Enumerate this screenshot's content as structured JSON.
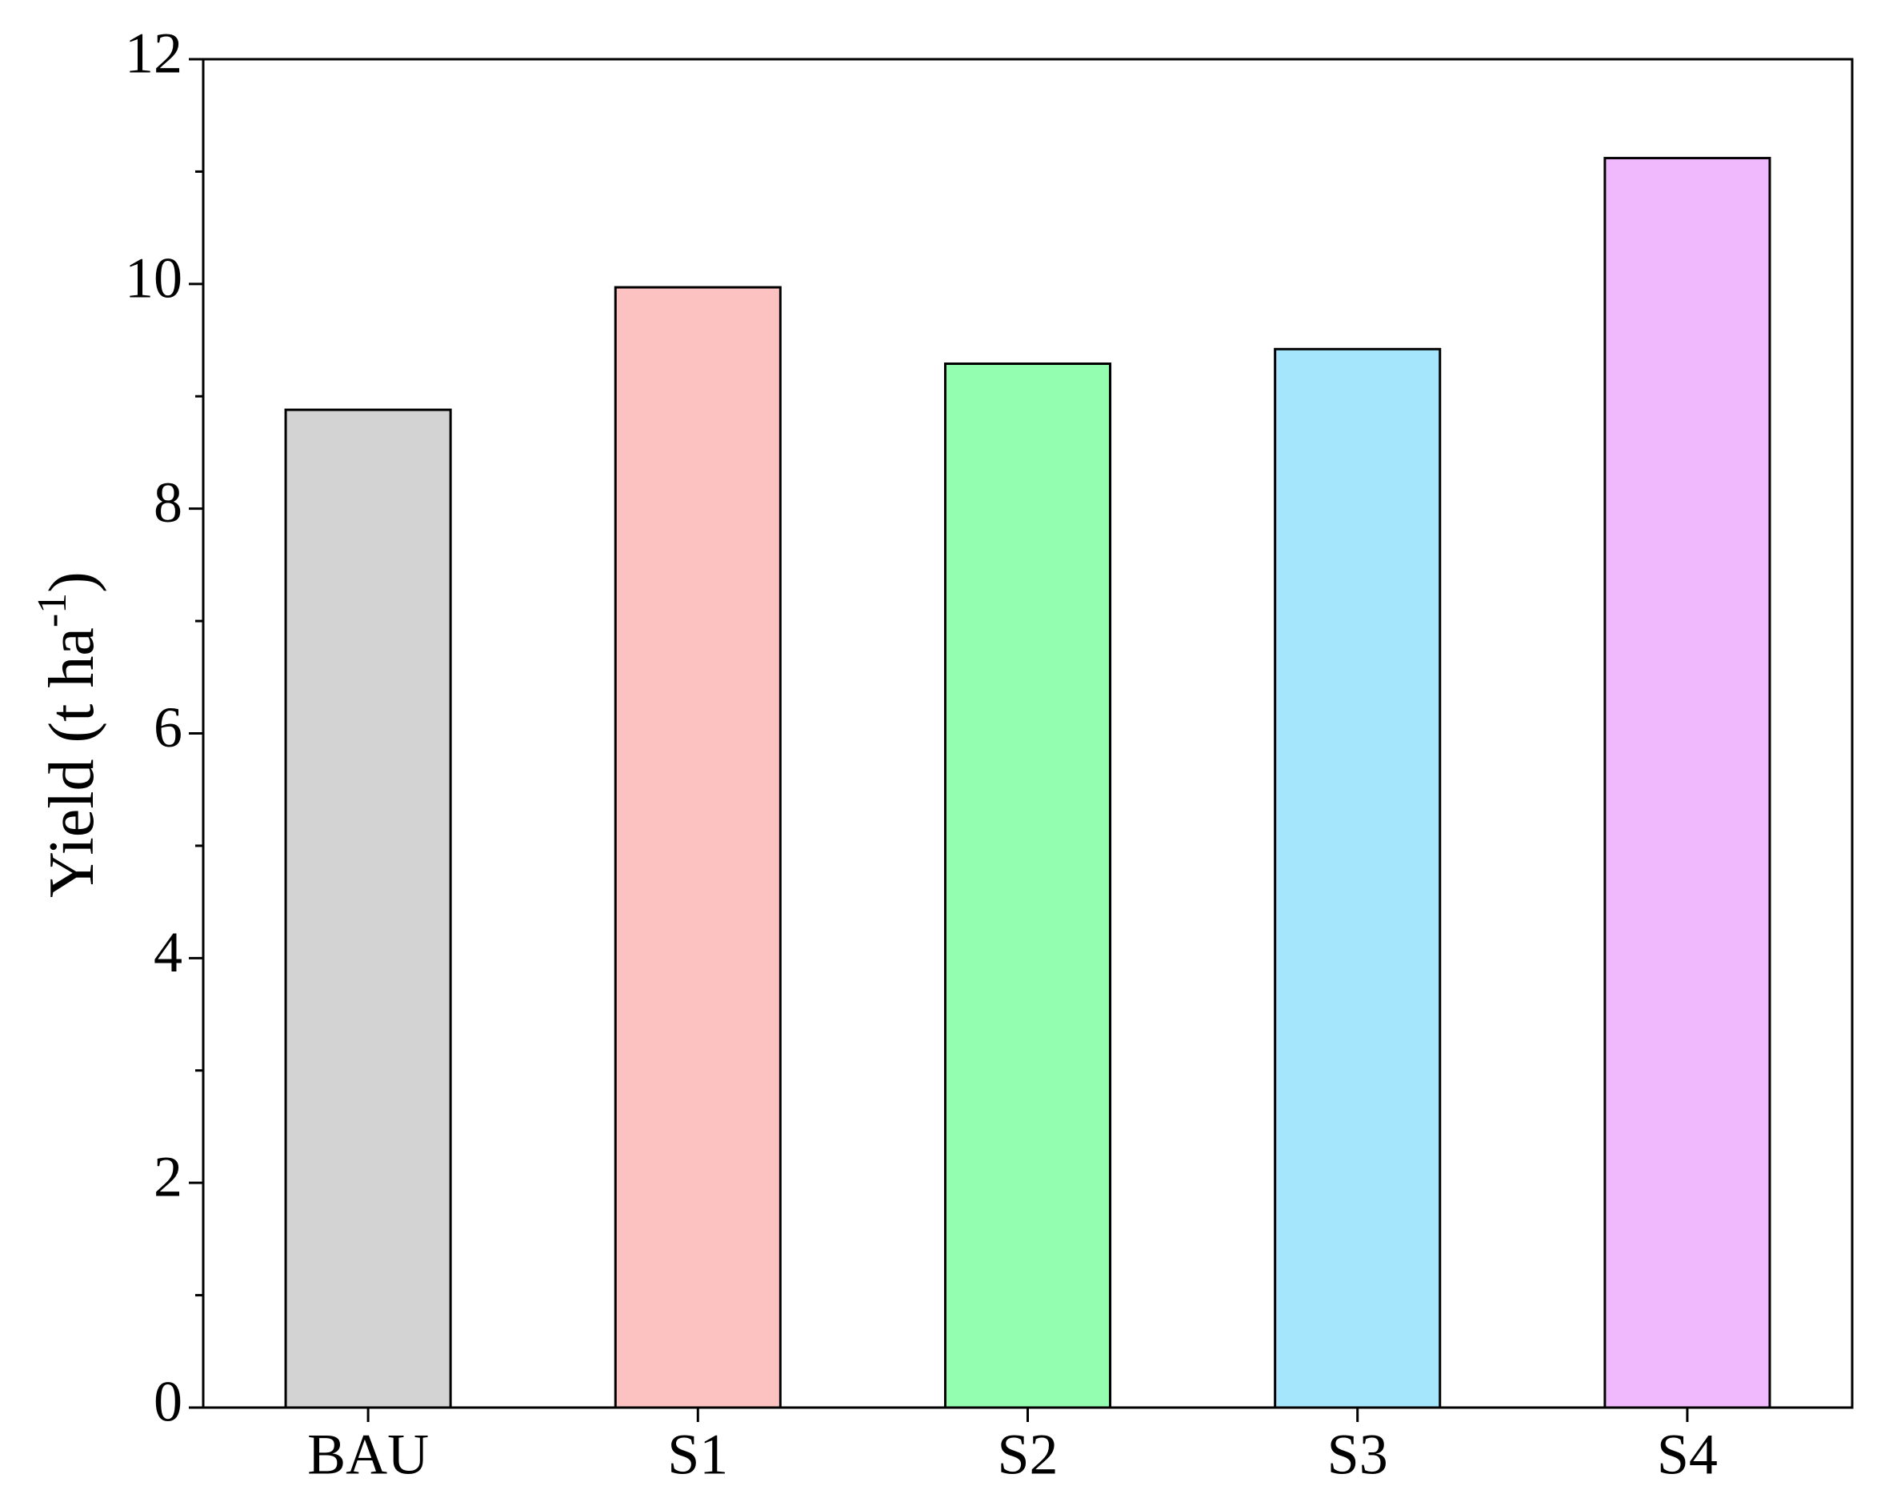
{
  "chart_data": {
    "type": "bar",
    "ylabel": [
      "Yield (t ha",
      "-1",
      ")"
    ],
    "categories": [
      "BAU",
      "S1",
      "S2",
      "S3",
      "S4"
    ],
    "values": [
      8.88,
      9.97,
      9.29,
      9.42,
      11.12
    ],
    "colors": [
      "#d3d3d3",
      "#fcc2c2",
      "#93feb0",
      "#a6e6fd",
      "#f0b8fd"
    ],
    "ylim": [
      0,
      12
    ],
    "yticks": [
      0,
      2,
      4,
      6,
      8,
      10,
      12
    ],
    "yminorticks": [
      1,
      3,
      5,
      7,
      9,
      11
    ],
    "grid": false
  }
}
